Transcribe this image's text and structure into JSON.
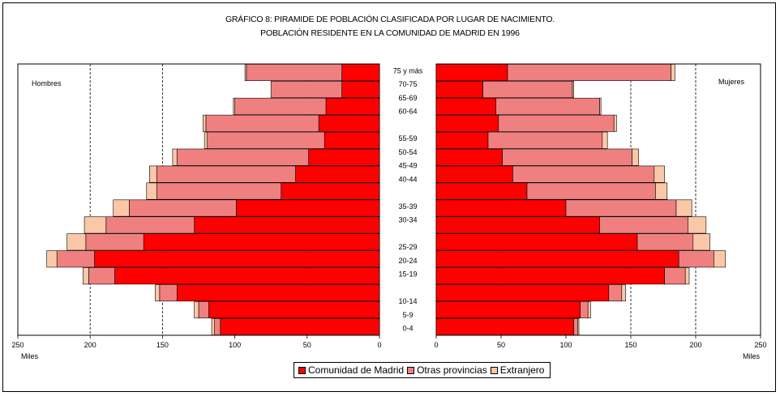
{
  "colors": {
    "madrid": "#ff0000",
    "otras": "#f08080",
    "extranjero": "#fac8a8",
    "grid": "#000000",
    "text": "#000000"
  },
  "chart_data": {
    "type": "bar",
    "title": "GRÁFICO 8: PIRAMIDE DE POBLACIÓN CLASIFICADA POR LUGAR DE NACIMIENTO.",
    "subtitle": "POBLACIÓN RESIDENTE EN LA COMUNIDAD DE MADRID EN 1996",
    "left_label": "Hombres",
    "right_label": "Mujeres",
    "unit_label": "Miles",
    "xlim": [
      0,
      250
    ],
    "ticks": [
      250,
      200,
      150,
      100,
      50,
      0
    ],
    "right_ticks": [
      0,
      50,
      100,
      150,
      200,
      250
    ],
    "grid": "dashed at 50, 150, 200",
    "legend_position": "bottom",
    "categories": [
      "75 y más",
      "70-75",
      "65-69",
      "60-64",
      "55-59",
      "50-54",
      "45-49",
      "40-44",
      "35-39",
      "30-34",
      "25-29",
      "20-24",
      "15-19",
      "10-14",
      "5-9",
      "0-4"
    ],
    "label_categories": [
      "75 y más",
      "70-75",
      "65-69",
      "60-64",
      "",
      "55-59",
      "50-54",
      "45-49",
      "40-44",
      "",
      "35-39",
      "30-34",
      "",
      "25-29",
      "20-24",
      "15-19",
      "",
      "10-14",
      "5-9",
      "0-4"
    ],
    "series": [
      {
        "name": "Comunidad de Madrid",
        "hombres": [
          26,
          26,
          37,
          42,
          38,
          49,
          58,
          68,
          99,
          128,
          163,
          197,
          183,
          140,
          118,
          110
        ],
        "mujeres": [
          55,
          36,
          46,
          48,
          40,
          51,
          59,
          70,
          100,
          126,
          155,
          187,
          176,
          133,
          111,
          106
        ]
      },
      {
        "name": "Otras provincias",
        "hombres": [
          66,
          49,
          63,
          78,
          81,
          91,
          96,
          86,
          74,
          61,
          40,
          26,
          18,
          12,
          7,
          4
        ],
        "mujeres": [
          126,
          69,
          80,
          89,
          88,
          100,
          109,
          99,
          85,
          68,
          43,
          27,
          16,
          10,
          6,
          3
        ]
      },
      {
        "name": "Extranjero",
        "hombres": [
          1,
          0,
          1,
          2,
          2,
          3,
          5,
          7,
          11,
          15,
          13,
          7,
          4,
          3,
          3,
          2
        ],
        "mujeres": [
          3,
          1,
          1,
          2,
          4,
          5,
          8,
          9,
          12,
          14,
          13,
          9,
          3,
          3,
          2,
          1
        ]
      }
    ]
  }
}
